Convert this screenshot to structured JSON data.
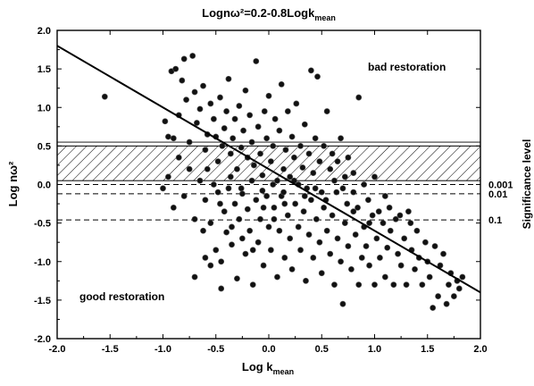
{
  "chart_data": {
    "type": "scatter",
    "title": "Lognω²=0.2-0.8Logk",
    "title_sub": "mean",
    "xlabel": "Log k",
    "xlabel_sub": "mean",
    "ylabel": "Log nω²",
    "xlim": [
      -2.0,
      2.0
    ],
    "ylim": [
      -2.0,
      2.0
    ],
    "x_ticks": [
      "-2.0",
      "-1.5",
      "-1.0",
      "-0.5",
      "0.0",
      "0.5",
      "1.0",
      "1.5",
      "2.0"
    ],
    "y_ticks": [
      "-2.0",
      "-1.5",
      "-1.0",
      "-0.5",
      "0.0",
      "0.5",
      "1.0",
      "1.5",
      "2.0"
    ],
    "regression_line": {
      "intercept": 0.2,
      "slope": -0.8
    },
    "hatched_band": {
      "y_from": 0.05,
      "y_to": 0.5
    },
    "significance_label": "Significance level",
    "significance_lines": [
      {
        "label": "0.001",
        "y": 0.0
      },
      {
        "label": "0.01",
        "y": -0.12
      },
      {
        "label": "0.1",
        "y": -0.46
      }
    ],
    "annotations": {
      "bad": "bad restoration",
      "good": "good restoration"
    },
    "points": [
      [
        -1.55,
        1.14
      ],
      [
        -0.92,
        1.47
      ],
      [
        -0.88,
        1.5
      ],
      [
        -0.8,
        1.63
      ],
      [
        -0.72,
        1.67
      ],
      [
        -0.98,
        0.82
      ],
      [
        -0.95,
        0.62
      ],
      [
        -0.9,
        0.6
      ],
      [
        -0.85,
        0.9
      ],
      [
        -0.82,
        1.35
      ],
      [
        -0.78,
        1.1
      ],
      [
        -0.75,
        0.55
      ],
      [
        -0.7,
        1.2
      ],
      [
        -0.68,
        0.8
      ],
      [
        -0.65,
        0.98
      ],
      [
        -0.62,
        1.28
      ],
      [
        -0.6,
        0.45
      ],
      [
        -0.58,
        0.65
      ],
      [
        -0.55,
        1.05
      ],
      [
        -0.52,
        0.85
      ],
      [
        -0.5,
        0.62
      ],
      [
        -0.48,
        0.3
      ],
      [
        -0.46,
        1.13
      ],
      [
        -0.44,
        0.5
      ],
      [
        -0.42,
        0.73
      ],
      [
        -0.4,
        0.95
      ],
      [
        -0.38,
        1.37
      ],
      [
        -0.36,
        0.4
      ],
      [
        -0.34,
        0.6
      ],
      [
        -0.32,
        0.85
      ],
      [
        -0.3,
        0.2
      ],
      [
        -0.28,
        1.02
      ],
      [
        -0.26,
        0.48
      ],
      [
        -0.24,
        0.7
      ],
      [
        -0.22,
        1.22
      ],
      [
        -0.2,
        0.35
      ],
      [
        -0.18,
        0.9
      ],
      [
        -0.16,
        0.55
      ],
      [
        -0.14,
        0.25
      ],
      [
        -0.12,
        1.6
      ],
      [
        -0.1,
        0.75
      ],
      [
        -0.08,
        0.4
      ],
      [
        -0.06,
        0.12
      ],
      [
        -0.04,
        0.95
      ],
      [
        -0.02,
        0.6
      ],
      [
        0.0,
        1.15
      ],
      [
        0.02,
        0.3
      ],
      [
        0.04,
        0.5
      ],
      [
        0.06,
        0.85
      ],
      [
        0.08,
        0.05
      ],
      [
        0.1,
        0.7
      ],
      [
        0.12,
        1.3
      ],
      [
        0.14,
        0.2
      ],
      [
        0.16,
        0.45
      ],
      [
        0.18,
        0.95
      ],
      [
        0.2,
        0.1
      ],
      [
        0.22,
        0.62
      ],
      [
        0.24,
        0.35
      ],
      [
        0.26,
        1.05
      ],
      [
        0.28,
        0.0
      ],
      [
        0.3,
        0.5
      ],
      [
        0.32,
        0.22
      ],
      [
        0.34,
        0.78
      ],
      [
        0.36,
        -0.05
      ],
      [
        0.38,
        0.4
      ],
      [
        0.4,
        1.48
      ],
      [
        0.42,
        0.15
      ],
      [
        0.44,
        0.6
      ],
      [
        0.46,
        1.4
      ],
      [
        0.48,
        0.3
      ],
      [
        0.5,
        -0.1
      ],
      [
        0.52,
        0.5
      ],
      [
        0.55,
        0.95
      ],
      [
        0.58,
        0.2
      ],
      [
        0.6,
        0.4
      ],
      [
        0.62,
        0.05
      ],
      [
        0.65,
        0.3
      ],
      [
        0.68,
        0.6
      ],
      [
        0.72,
        0.1
      ],
      [
        0.75,
        0.35
      ],
      [
        0.8,
        -0.1
      ],
      [
        0.85,
        1.13
      ],
      [
        0.9,
        0.0
      ],
      [
        -0.6,
        -0.2
      ],
      [
        -0.55,
        -0.5
      ],
      [
        -0.5,
        -0.85
      ],
      [
        -0.48,
        -0.1
      ],
      [
        -0.45,
        -1.0
      ],
      [
        -0.42,
        -0.35
      ],
      [
        -0.4,
        -0.62
      ],
      [
        -0.38,
        -0.05
      ],
      [
        -0.35,
        -0.78
      ],
      [
        -0.32,
        -0.25
      ],
      [
        -0.3,
        -1.22
      ],
      [
        -0.28,
        -0.45
      ],
      [
        -0.25,
        -0.12
      ],
      [
        -0.22,
        -0.9
      ],
      [
        -0.2,
        -0.32
      ],
      [
        -0.18,
        -0.6
      ],
      [
        -0.15,
        -1.3
      ],
      [
        -0.12,
        -0.2
      ],
      [
        -0.1,
        -0.75
      ],
      [
        -0.08,
        -0.45
      ],
      [
        -0.05,
        -1.05
      ],
      [
        -0.02,
        -0.15
      ],
      [
        0.0,
        -0.55
      ],
      [
        0.02,
        -0.85
      ],
      [
        0.05,
        -0.3
      ],
      [
        0.08,
        -1.2
      ],
      [
        0.1,
        -0.6
      ],
      [
        0.12,
        -0.15
      ],
      [
        0.15,
        -0.95
      ],
      [
        0.18,
        -0.4
      ],
      [
        0.2,
        -0.7
      ],
      [
        0.22,
        -1.1
      ],
      [
        0.25,
        -0.25
      ],
      [
        0.28,
        -0.55
      ],
      [
        0.3,
        -0.85
      ],
      [
        0.33,
        -0.35
      ],
      [
        0.35,
        -1.25
      ],
      [
        0.38,
        -0.65
      ],
      [
        0.4,
        -0.2
      ],
      [
        0.42,
        -0.95
      ],
      [
        0.45,
        -0.45
      ],
      [
        0.48,
        -0.75
      ],
      [
        0.5,
        -1.15
      ],
      [
        0.52,
        -0.3
      ],
      [
        0.55,
        -0.6
      ],
      [
        0.58,
        -0.9
      ],
      [
        0.6,
        -0.4
      ],
      [
        0.62,
        -1.3
      ],
      [
        0.65,
        -0.7
      ],
      [
        0.68,
        -1.0
      ],
      [
        0.7,
        -1.55
      ],
      [
        0.72,
        -0.5
      ],
      [
        0.75,
        -0.8
      ],
      [
        0.78,
        -1.1
      ],
      [
        0.8,
        -0.35
      ],
      [
        0.82,
        -0.65
      ],
      [
        0.85,
        -1.3
      ],
      [
        0.88,
        -0.95
      ],
      [
        0.9,
        -0.55
      ],
      [
        0.92,
        -0.8
      ],
      [
        0.95,
        -1.05
      ],
      [
        0.98,
        -0.4
      ],
      [
        1.0,
        -1.3
      ],
      [
        1.02,
        -0.7
      ],
      [
        1.05,
        -0.95
      ],
      [
        1.08,
        -0.5
      ],
      [
        1.1,
        -1.2
      ],
      [
        1.12,
        -0.82
      ],
      [
        1.15,
        -0.6
      ],
      [
        1.18,
        -1.3
      ],
      [
        1.2,
        -0.45
      ],
      [
        1.22,
        -0.9
      ],
      [
        1.25,
        -1.05
      ],
      [
        1.28,
        -0.7
      ],
      [
        1.3,
        -1.3
      ],
      [
        1.32,
        -0.35
      ],
      [
        1.35,
        -0.85
      ],
      [
        1.38,
        -1.1
      ],
      [
        1.4,
        -0.6
      ],
      [
        1.42,
        -0.95
      ],
      [
        1.45,
        -1.3
      ],
      [
        1.48,
        -0.75
      ],
      [
        1.5,
        -1.0
      ],
      [
        1.52,
        -1.2
      ],
      [
        1.55,
        -1.6
      ],
      [
        1.57,
        -0.8
      ],
      [
        1.6,
        -1.45
      ],
      [
        1.62,
        -1.05
      ],
      [
        1.65,
        -0.9
      ],
      [
        1.68,
        -1.55
      ],
      [
        1.7,
        -1.3
      ],
      [
        1.72,
        -1.15
      ],
      [
        1.75,
        -1.45
      ],
      [
        1.78,
        -1.25
      ],
      [
        1.8,
        -1.35
      ],
      [
        1.83,
        -1.2
      ],
      [
        -1.0,
        -0.05
      ],
      [
        -0.95,
        0.1
      ],
      [
        -0.9,
        -0.3
      ],
      [
        -0.85,
        0.35
      ],
      [
        -0.8,
        -0.15
      ],
      [
        -0.75,
        0.2
      ],
      [
        -0.7,
        -0.45
      ],
      [
        -0.65,
        0.05
      ],
      [
        -0.62,
        -0.6
      ],
      [
        -0.58,
        0.2
      ],
      [
        -0.52,
        0.0
      ],
      [
        -0.46,
        -0.25
      ],
      [
        -0.36,
        0.1
      ],
      [
        -0.26,
        -0.05
      ],
      [
        -0.16,
        0.05
      ],
      [
        -0.06,
        -0.08
      ],
      [
        0.04,
        0.0
      ],
      [
        0.14,
        -0.1
      ],
      [
        0.24,
        0.05
      ],
      [
        0.34,
        -0.15
      ],
      [
        0.44,
        -0.05
      ],
      [
        0.54,
        -0.2
      ],
      [
        0.64,
        -0.1
      ],
      [
        0.74,
        -0.25
      ],
      [
        0.84,
        -0.3
      ],
      [
        0.94,
        -0.2
      ],
      [
        1.04,
        -0.35
      ],
      [
        1.14,
        -0.3
      ],
      [
        1.24,
        -0.4
      ],
      [
        1.34,
        -0.5
      ],
      [
        0.7,
        -0.05
      ],
      [
        0.8,
        0.15
      ],
      [
        0.95,
        -0.5
      ],
      [
        1.0,
        0.1
      ],
      [
        1.1,
        -0.15
      ],
      [
        -0.7,
        -1.2
      ],
      [
        -0.6,
        -0.95
      ],
      [
        -0.55,
        -1.05
      ],
      [
        -0.45,
        -1.35
      ],
      [
        -0.35,
        -0.55
      ],
      [
        -0.25,
        -0.7
      ],
      [
        -0.15,
        -0.85
      ],
      [
        -0.05,
        -0.3
      ],
      [
        0.05,
        -0.45
      ],
      [
        0.15,
        -0.25
      ]
    ]
  }
}
